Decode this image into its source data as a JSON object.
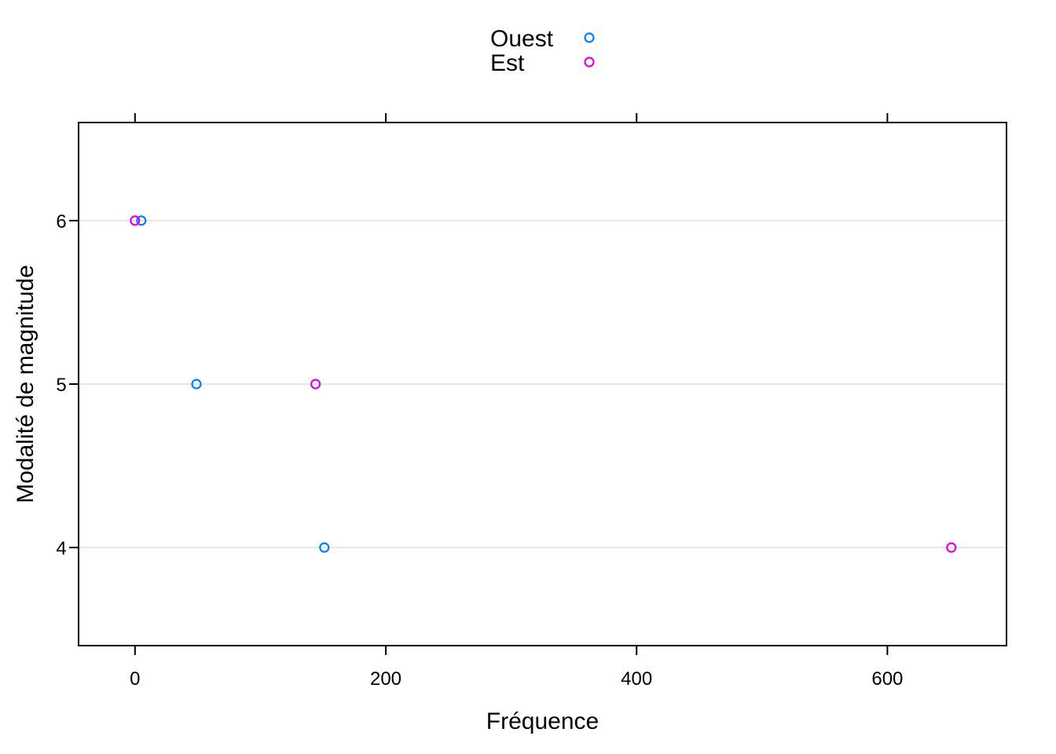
{
  "chart_data": {
    "type": "scatter",
    "title": "",
    "xlabel": "Fréquence",
    "ylabel": "Modalité de magnitude",
    "xlim": [
      -45,
      695
    ],
    "ylim": [
      3.4,
      6.6
    ],
    "x_ticks": [
      0,
      200,
      400,
      600
    ],
    "x_tick_labels": [
      "0",
      "200",
      "400",
      "600"
    ],
    "y_ticks": [
      4,
      5,
      6
    ],
    "y_tick_labels": [
      "4",
      "5",
      "6"
    ],
    "y_gridlines": true,
    "legend_position": "top",
    "marker": "open-circle",
    "series": [
      {
        "name": "Ouest",
        "color": "#0080ff",
        "points": [
          {
            "x": 5,
            "y": 6
          },
          {
            "x": 49,
            "y": 5
          },
          {
            "x": 151,
            "y": 4
          }
        ]
      },
      {
        "name": "Est",
        "color": "#e600e6",
        "points": [
          {
            "x": 0,
            "y": 6
          },
          {
            "x": 144,
            "y": 5
          },
          {
            "x": 651,
            "y": 4
          }
        ]
      }
    ]
  }
}
